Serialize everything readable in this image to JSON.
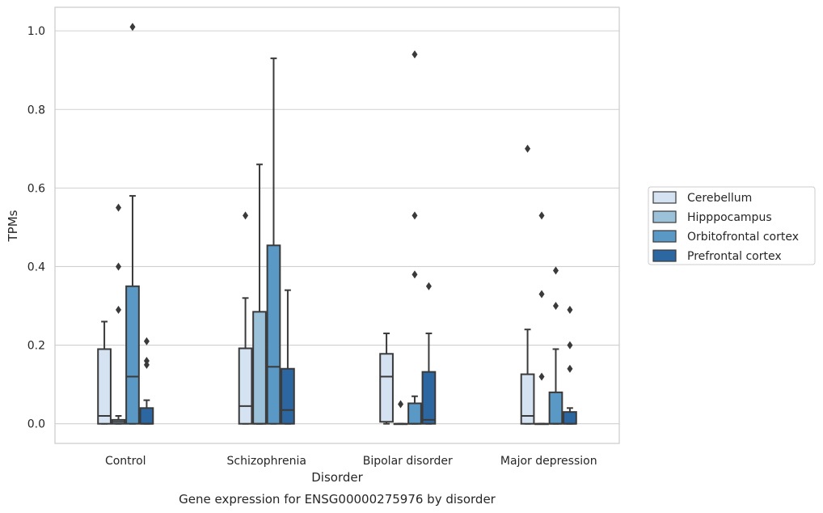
{
  "chart_data": {
    "type": "box",
    "title": "",
    "caption": "Gene expression for ENSG00000275976 by disorder",
    "xlabel": "Disorder",
    "ylabel": "TPMs",
    "ylim": [
      -0.05,
      1.06
    ],
    "yticks": [
      0.0,
      0.2,
      0.4,
      0.6,
      0.8,
      1.0
    ],
    "ytick_labels": [
      "0.0",
      "0.2",
      "0.4",
      "0.6",
      "0.8",
      "1.0"
    ],
    "grid": "horizontal",
    "legend_position": "right",
    "categories": [
      "Control",
      "Schizophrenia",
      "Bipolar disorder",
      "Major depression"
    ],
    "series": [
      {
        "name": "Cerebellum",
        "color": "#d4e2f1",
        "boxes": [
          {
            "q1": 0.0,
            "median": 0.02,
            "q3": 0.19,
            "whisker_low": 0.0,
            "whisker_high": 0.26,
            "outliers": []
          },
          {
            "q1": 0.0,
            "median": 0.045,
            "q3": 0.192,
            "whisker_low": 0.0,
            "whisker_high": 0.32,
            "outliers": [
              0.53
            ]
          },
          {
            "q1": 0.005,
            "median": 0.12,
            "q3": 0.178,
            "whisker_low": 0.0,
            "whisker_high": 0.23,
            "outliers": []
          },
          {
            "q1": 0.0,
            "median": 0.02,
            "q3": 0.126,
            "whisker_low": 0.0,
            "whisker_high": 0.24,
            "outliers": [
              0.7
            ]
          }
        ]
      },
      {
        "name": "Hipppocampus",
        "color": "#9cc2da",
        "boxes": [
          {
            "q1": 0.0,
            "median": 0.005,
            "q3": 0.01,
            "whisker_low": 0.0,
            "whisker_high": 0.02,
            "outliers": [
              0.29,
              0.4,
              0.55
            ]
          },
          {
            "q1": 0.0,
            "median": 0.0,
            "q3": 0.285,
            "whisker_low": 0.0,
            "whisker_high": 0.66,
            "outliers": []
          },
          {
            "q1": 0.0,
            "median": 0.0,
            "q3": 0.0,
            "whisker_low": 0.0,
            "whisker_high": 0.0,
            "outliers": [
              0.05
            ]
          },
          {
            "q1": 0.0,
            "median": 0.0,
            "q3": 0.0,
            "whisker_low": 0.0,
            "whisker_high": 0.0,
            "outliers": [
              0.12,
              0.33,
              0.53
            ]
          }
        ]
      },
      {
        "name": "Orbitofrontal cortex",
        "color": "#5a98c5",
        "boxes": [
          {
            "q1": 0.0,
            "median": 0.12,
            "q3": 0.35,
            "whisker_low": 0.0,
            "whisker_high": 0.58,
            "outliers": [
              1.01
            ]
          },
          {
            "q1": 0.0,
            "median": 0.145,
            "q3": 0.454,
            "whisker_low": 0.0,
            "whisker_high": 0.93,
            "outliers": []
          },
          {
            "q1": 0.0,
            "median": 0.0,
            "q3": 0.052,
            "whisker_low": 0.0,
            "whisker_high": 0.07,
            "outliers": [
              0.38,
              0.53,
              0.94
            ]
          },
          {
            "q1": 0.0,
            "median": 0.0,
            "q3": 0.08,
            "whisker_low": 0.0,
            "whisker_high": 0.19,
            "outliers": [
              0.3,
              0.39
            ]
          }
        ]
      },
      {
        "name": "Prefrontal cortex",
        "color": "#2d67a2",
        "boxes": [
          {
            "q1": 0.0,
            "median": 0.0,
            "q3": 0.04,
            "whisker_low": 0.0,
            "whisker_high": 0.06,
            "outliers": [
              0.15,
              0.16,
              0.21
            ]
          },
          {
            "q1": 0.0,
            "median": 0.035,
            "q3": 0.14,
            "whisker_low": 0.0,
            "whisker_high": 0.34,
            "outliers": []
          },
          {
            "q1": 0.0,
            "median": 0.01,
            "q3": 0.132,
            "whisker_low": 0.0,
            "whisker_high": 0.23,
            "outliers": [
              0.35
            ]
          },
          {
            "q1": 0.0,
            "median": 0.0,
            "q3": 0.03,
            "whisker_low": 0.0,
            "whisker_high": 0.04,
            "outliers": [
              0.14,
              0.2,
              0.29
            ]
          }
        ]
      }
    ]
  }
}
